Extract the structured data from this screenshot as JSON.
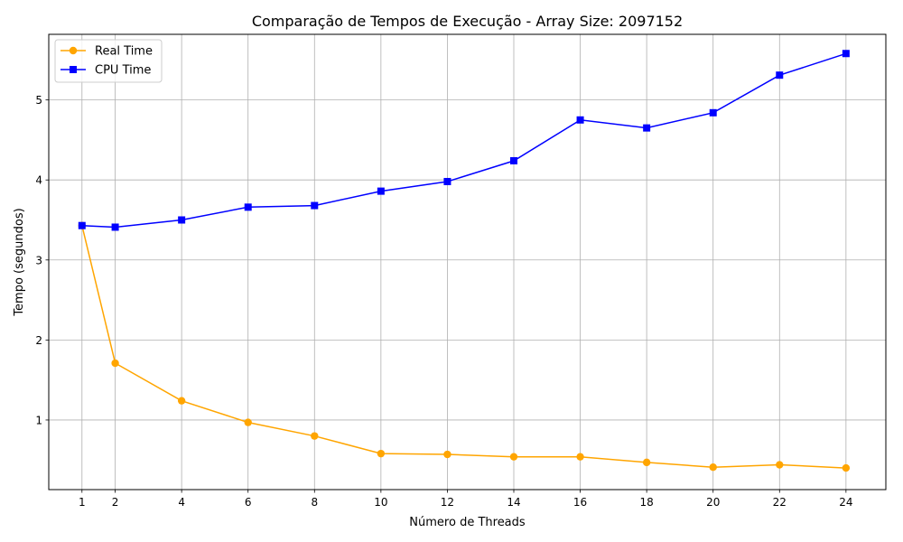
{
  "chart_data": {
    "type": "line",
    "title": "Comparação de Tempos de Execução - Array Size: 2097152",
    "xlabel": "Número de Threads",
    "ylabel": "Tempo (segundos)",
    "x": [
      1,
      2,
      4,
      6,
      8,
      10,
      12,
      14,
      16,
      18,
      20,
      22,
      24
    ],
    "x_ticks": [
      1,
      2,
      4,
      6,
      8,
      10,
      12,
      14,
      16,
      18,
      20,
      22,
      24
    ],
    "y_ticks": [
      1,
      2,
      3,
      4,
      5
    ],
    "xlim": [
      0,
      25.2
    ],
    "ylim": [
      0.13,
      5.82
    ],
    "grid": true,
    "legend_position": "top-left",
    "series": [
      {
        "name": "Real Time",
        "color": "#ffa500",
        "marker": "circle",
        "values": [
          3.43,
          1.71,
          1.24,
          0.97,
          0.8,
          0.58,
          0.57,
          0.54,
          0.54,
          0.47,
          0.41,
          0.44,
          0.4
        ]
      },
      {
        "name": "CPU Time",
        "color": "#0000ff",
        "marker": "square",
        "values": [
          3.43,
          3.41,
          3.5,
          3.66,
          3.68,
          3.86,
          3.98,
          4.24,
          4.75,
          4.65,
          4.84,
          5.31,
          5.58
        ]
      }
    ]
  }
}
